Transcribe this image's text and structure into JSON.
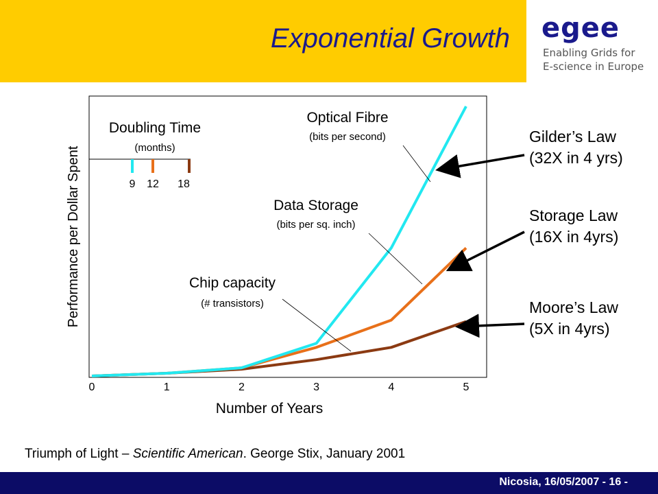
{
  "slide": {
    "title": "Exponential Growth",
    "logo": {
      "word": "egee",
      "line1": "Enabling Grids for",
      "line2": "E-science in Europe"
    },
    "footer": "Nicosia, 16/05/2007 - 16 -",
    "citation": {
      "part1": "Triumph of Light – ",
      "part2": "Scientific American",
      "part3": ". George Stix, January 2001"
    }
  },
  "laws": [
    {
      "line1": "Gilder’s Law",
      "line2": "(32X in 4 yrs)"
    },
    {
      "line1": "Storage Law",
      "line2": "(16X in 4yrs)"
    },
    {
      "line1": "Moore’s Law",
      "line2": "(5X in 4yrs)"
    }
  ],
  "legend": {
    "title": "Doubling Time",
    "subtitle": "(months)",
    "items": [
      {
        "label": "9",
        "color": "#22e8f0"
      },
      {
        "label": "12",
        "color": "#e8701a"
      },
      {
        "label": "18",
        "color": "#8b3a12"
      }
    ]
  },
  "chart_data": {
    "type": "line",
    "xlabel": "Number of Years",
    "ylabel": "Performance per Dollar Spent",
    "xlim": [
      0,
      5
    ],
    "x_ticks": [
      "0",
      "1",
      "2",
      "3",
      "4",
      "5"
    ],
    "grid": false,
    "series": [
      {
        "name": "Optical Fibre",
        "unit": "(bits per second)",
        "color": "#22e8f0",
        "x": [
          0,
          1,
          2,
          3,
          4,
          5
        ],
        "y": [
          1,
          2,
          4,
          13,
          48,
          100
        ]
      },
      {
        "name": "Data Storage",
        "unit": "(bits per sq. inch)",
        "color": "#e8701a",
        "x": [
          0,
          1,
          2,
          3,
          4,
          5
        ],
        "y": [
          1,
          2,
          4,
          11.5,
          21.5,
          48
        ]
      },
      {
        "name": "Chip capacity",
        "unit": "(# transistors)",
        "color": "#8b3a12",
        "x": [
          0,
          1,
          2,
          3,
          4,
          5
        ],
        "y": [
          1,
          2,
          3.5,
          7,
          11.5,
          21
        ]
      }
    ]
  }
}
